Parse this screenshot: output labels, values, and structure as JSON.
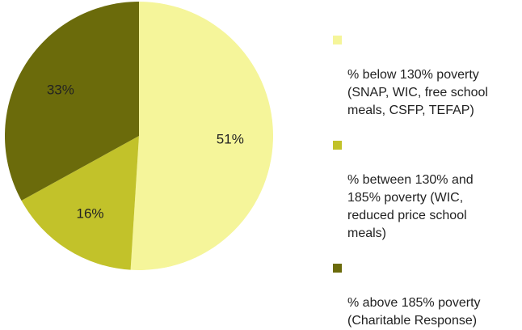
{
  "chart_data": {
    "type": "pie",
    "categories": [
      "% below 130% poverty\n(SNAP, WIC, free school\nmeals, CSFP, TEFAP)",
      "% between 130% and\n185% poverty (WIC,\nreduced price school\nmeals)",
      "% above 185% poverty\n(Charitable Response)"
    ],
    "values": [
      51,
      16,
      33
    ],
    "value_labels": [
      "51%",
      "16%",
      "33%"
    ],
    "colors": [
      "#f5f59a",
      "#c2c22a",
      "#6b6b0b"
    ],
    "legend_position": "right"
  }
}
